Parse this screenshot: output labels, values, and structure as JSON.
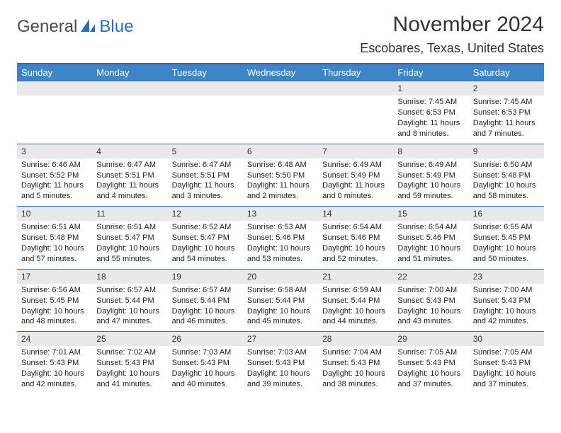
{
  "logo": {
    "part1": "General",
    "part2": "Blue"
  },
  "title": "November 2024",
  "location": "Escobares, Texas, United States",
  "colors": {
    "header_bg": "#3d85c6",
    "border": "#2d6fb6",
    "daynum_bg": "#e9e9e9",
    "text": "#222222",
    "white": "#ffffff"
  },
  "weekdays": [
    "Sunday",
    "Monday",
    "Tuesday",
    "Wednesday",
    "Thursday",
    "Friday",
    "Saturday"
  ],
  "weeks": [
    [
      {
        "n": "",
        "sr": "",
        "ss": "",
        "dl": ""
      },
      {
        "n": "",
        "sr": "",
        "ss": "",
        "dl": ""
      },
      {
        "n": "",
        "sr": "",
        "ss": "",
        "dl": ""
      },
      {
        "n": "",
        "sr": "",
        "ss": "",
        "dl": ""
      },
      {
        "n": "",
        "sr": "",
        "ss": "",
        "dl": ""
      },
      {
        "n": "1",
        "sr": "Sunrise: 7:45 AM",
        "ss": "Sunset: 6:53 PM",
        "dl": "Daylight: 11 hours and 8 minutes."
      },
      {
        "n": "2",
        "sr": "Sunrise: 7:45 AM",
        "ss": "Sunset: 6:53 PM",
        "dl": "Daylight: 11 hours and 7 minutes."
      }
    ],
    [
      {
        "n": "3",
        "sr": "Sunrise: 6:46 AM",
        "ss": "Sunset: 5:52 PM",
        "dl": "Daylight: 11 hours and 5 minutes."
      },
      {
        "n": "4",
        "sr": "Sunrise: 6:47 AM",
        "ss": "Sunset: 5:51 PM",
        "dl": "Daylight: 11 hours and 4 minutes."
      },
      {
        "n": "5",
        "sr": "Sunrise: 6:47 AM",
        "ss": "Sunset: 5:51 PM",
        "dl": "Daylight: 11 hours and 3 minutes."
      },
      {
        "n": "6",
        "sr": "Sunrise: 6:48 AM",
        "ss": "Sunset: 5:50 PM",
        "dl": "Daylight: 11 hours and 2 minutes."
      },
      {
        "n": "7",
        "sr": "Sunrise: 6:49 AM",
        "ss": "Sunset: 5:49 PM",
        "dl": "Daylight: 11 hours and 0 minutes."
      },
      {
        "n": "8",
        "sr": "Sunrise: 6:49 AM",
        "ss": "Sunset: 5:49 PM",
        "dl": "Daylight: 10 hours and 59 minutes."
      },
      {
        "n": "9",
        "sr": "Sunrise: 6:50 AM",
        "ss": "Sunset: 5:48 PM",
        "dl": "Daylight: 10 hours and 58 minutes."
      }
    ],
    [
      {
        "n": "10",
        "sr": "Sunrise: 6:51 AM",
        "ss": "Sunset: 5:48 PM",
        "dl": "Daylight: 10 hours and 57 minutes."
      },
      {
        "n": "11",
        "sr": "Sunrise: 6:51 AM",
        "ss": "Sunset: 5:47 PM",
        "dl": "Daylight: 10 hours and 55 minutes."
      },
      {
        "n": "12",
        "sr": "Sunrise: 6:52 AM",
        "ss": "Sunset: 5:47 PM",
        "dl": "Daylight: 10 hours and 54 minutes."
      },
      {
        "n": "13",
        "sr": "Sunrise: 6:53 AM",
        "ss": "Sunset: 5:46 PM",
        "dl": "Daylight: 10 hours and 53 minutes."
      },
      {
        "n": "14",
        "sr": "Sunrise: 6:54 AM",
        "ss": "Sunset: 5:46 PM",
        "dl": "Daylight: 10 hours and 52 minutes."
      },
      {
        "n": "15",
        "sr": "Sunrise: 6:54 AM",
        "ss": "Sunset: 5:46 PM",
        "dl": "Daylight: 10 hours and 51 minutes."
      },
      {
        "n": "16",
        "sr": "Sunrise: 6:55 AM",
        "ss": "Sunset: 5:45 PM",
        "dl": "Daylight: 10 hours and 50 minutes."
      }
    ],
    [
      {
        "n": "17",
        "sr": "Sunrise: 6:56 AM",
        "ss": "Sunset: 5:45 PM",
        "dl": "Daylight: 10 hours and 48 minutes."
      },
      {
        "n": "18",
        "sr": "Sunrise: 6:57 AM",
        "ss": "Sunset: 5:44 PM",
        "dl": "Daylight: 10 hours and 47 minutes."
      },
      {
        "n": "19",
        "sr": "Sunrise: 6:57 AM",
        "ss": "Sunset: 5:44 PM",
        "dl": "Daylight: 10 hours and 46 minutes."
      },
      {
        "n": "20",
        "sr": "Sunrise: 6:58 AM",
        "ss": "Sunset: 5:44 PM",
        "dl": "Daylight: 10 hours and 45 minutes."
      },
      {
        "n": "21",
        "sr": "Sunrise: 6:59 AM",
        "ss": "Sunset: 5:44 PM",
        "dl": "Daylight: 10 hours and 44 minutes."
      },
      {
        "n": "22",
        "sr": "Sunrise: 7:00 AM",
        "ss": "Sunset: 5:43 PM",
        "dl": "Daylight: 10 hours and 43 minutes."
      },
      {
        "n": "23",
        "sr": "Sunrise: 7:00 AM",
        "ss": "Sunset: 5:43 PM",
        "dl": "Daylight: 10 hours and 42 minutes."
      }
    ],
    [
      {
        "n": "24",
        "sr": "Sunrise: 7:01 AM",
        "ss": "Sunset: 5:43 PM",
        "dl": "Daylight: 10 hours and 42 minutes."
      },
      {
        "n": "25",
        "sr": "Sunrise: 7:02 AM",
        "ss": "Sunset: 5:43 PM",
        "dl": "Daylight: 10 hours and 41 minutes."
      },
      {
        "n": "26",
        "sr": "Sunrise: 7:03 AM",
        "ss": "Sunset: 5:43 PM",
        "dl": "Daylight: 10 hours and 40 minutes."
      },
      {
        "n": "27",
        "sr": "Sunrise: 7:03 AM",
        "ss": "Sunset: 5:43 PM",
        "dl": "Daylight: 10 hours and 39 minutes."
      },
      {
        "n": "28",
        "sr": "Sunrise: 7:04 AM",
        "ss": "Sunset: 5:43 PM",
        "dl": "Daylight: 10 hours and 38 minutes."
      },
      {
        "n": "29",
        "sr": "Sunrise: 7:05 AM",
        "ss": "Sunset: 5:43 PM",
        "dl": "Daylight: 10 hours and 37 minutes."
      },
      {
        "n": "30",
        "sr": "Sunrise: 7:05 AM",
        "ss": "Sunset: 5:43 PM",
        "dl": "Daylight: 10 hours and 37 minutes."
      }
    ]
  ]
}
